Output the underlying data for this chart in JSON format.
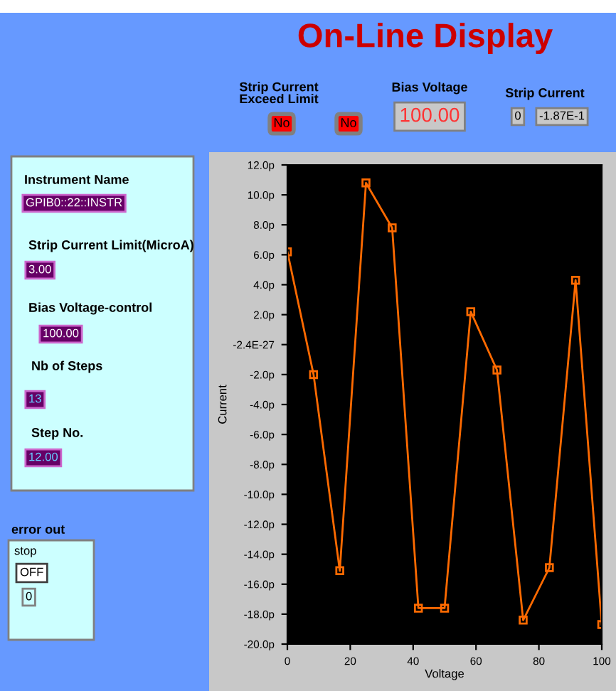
{
  "chart_data": {
    "type": "line",
    "title": "On-Line Display",
    "xlabel": "Voltage",
    "ylabel": "Current",
    "x": [
      0,
      8.33,
      16.67,
      25,
      33.33,
      41.67,
      50,
      58.33,
      66.67,
      75,
      83.33,
      91.67,
      100
    ],
    "series": [
      {
        "color": "#ff6a00",
        "values": [
          6.2,
          -2.0,
          -15.1,
          10.8,
          7.8,
          -17.6,
          -17.6,
          2.2,
          -1.7,
          -18.4,
          -14.9,
          4.3,
          -18.7
        ]
      }
    ],
    "xlim": [
      0,
      100
    ],
    "xticks": [
      0,
      20,
      40,
      60,
      80,
      100
    ],
    "ylim": [
      -20,
      12
    ],
    "yticks": [
      {
        "value": -20,
        "label": "-20.0p"
      },
      {
        "value": -18,
        "label": "-18.0p"
      },
      {
        "value": -16,
        "label": "-16.0p"
      },
      {
        "value": -14,
        "label": "-14.0p"
      },
      {
        "value": -12,
        "label": "-12.0p"
      },
      {
        "value": -10,
        "label": "-10.0p"
      },
      {
        "value": -8,
        "label": "-8.0p"
      },
      {
        "value": -6,
        "label": "-6.0p"
      },
      {
        "value": -4,
        "label": "-4.0p"
      },
      {
        "value": -2,
        "label": "-2.0p"
      },
      {
        "value": 0,
        "label": "-2.4E-27"
      },
      {
        "value": 2,
        "label": "2.0p"
      },
      {
        "value": 4,
        "label": "4.0p"
      },
      {
        "value": 6,
        "label": "6.0p"
      },
      {
        "value": 8,
        "label": "8.0p"
      },
      {
        "value": 10,
        "label": "10.0p"
      },
      {
        "value": 12,
        "label": "12.0p"
      }
    ],
    "marker": "square",
    "line_style": "solid",
    "grid": false,
    "legend": false,
    "annotations": [
      "Strip Current\nExceed Limit",
      "No",
      "No",
      "Bias Voltage",
      "100.00",
      "Strip Current",
      "0",
      "-1.87E-1",
      "Instrument Name",
      "GPIB0::22::INSTR",
      "Strip Current Limit(MicroA)",
      "3.00",
      "Bias Voltage-control",
      "100.00",
      "Nb of Steps",
      "13",
      "Step No.",
      "12.00",
      "error out",
      "stop",
      "OFF",
      "0"
    ]
  }
}
